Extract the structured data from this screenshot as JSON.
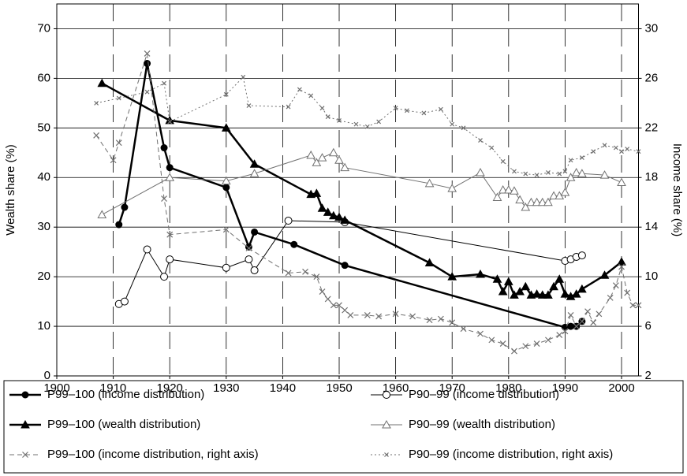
{
  "chart_data": {
    "type": "line",
    "y_label": "Wealth share (%)",
    "y2_label": "Income share (%)",
    "xlim": [
      1900,
      2003
    ],
    "xticks": [
      1900,
      1910,
      1920,
      1930,
      1940,
      1950,
      1960,
      1970,
      1980,
      1990,
      2000
    ],
    "ylim": [
      0,
      75
    ],
    "yticks": [
      0,
      10,
      20,
      30,
      40,
      50,
      60,
      70
    ],
    "y2lim": [
      2,
      32
    ],
    "y2ticks": [
      2,
      6,
      10,
      14,
      18,
      22,
      26,
      30
    ],
    "grid": true,
    "legend": "bottom",
    "series": [
      {
        "name": "P99–100 (income distribution)",
        "color": "#000000",
        "marker": "filled-circle",
        "line": "solid",
        "width": 2.5,
        "x": [
          1911,
          1912,
          1916,
          1919,
          1920,
          1930,
          1934,
          1935,
          1942,
          1951,
          1990,
          1991,
          1992,
          1993
        ],
        "values": [
          30.5,
          34,
          63,
          46,
          42,
          38,
          26,
          29,
          26.5,
          22.3,
          9.8,
          10,
          10,
          11
        ]
      },
      {
        "name": "P90–99 (income distribution)",
        "color": "#000000",
        "marker": "open-circle",
        "line": "solid",
        "width": 1,
        "x": [
          1911,
          1912,
          1916,
          1919,
          1920,
          1930,
          1934,
          1935,
          1941,
          1951,
          1990,
          1991,
          1992,
          1993
        ],
        "values": [
          14.5,
          15,
          25.5,
          20,
          23.5,
          21.8,
          23.5,
          21.3,
          31.3,
          31,
          23.2,
          23.5,
          24,
          24.3
        ]
      },
      {
        "name": "P99–100 (wealth distribution)",
        "color": "#000000",
        "marker": "filled-triangle",
        "line": "solid",
        "width": 2.5,
        "x": [
          1908,
          1920,
          1930,
          1935,
          1945,
          1946,
          1947,
          1948,
          1949,
          1950,
          1951,
          1966,
          1970,
          1975,
          1978,
          1979,
          1980,
          1981,
          1982,
          1983,
          1984,
          1985,
          1986,
          1987,
          1988,
          1989,
          1990,
          1991,
          1992,
          1993,
          1997,
          2000
        ],
        "values": [
          59,
          51.5,
          50,
          42.7,
          36.6,
          36.8,
          33.8,
          33,
          32.3,
          32,
          31.4,
          22.8,
          20,
          20.5,
          19.5,
          17,
          19,
          16.3,
          17,
          18,
          16.3,
          16.5,
          16.3,
          16.3,
          18,
          19.5,
          16.5,
          16,
          16.5,
          17.5,
          20.3,
          23
        ]
      },
      {
        "name": "P90–99 (wealth distribution)",
        "color": "#707070",
        "marker": "open-triangle",
        "line": "solid",
        "width": 1,
        "x": [
          1908,
          1920,
          1930,
          1935,
          1945,
          1946,
          1947,
          1949,
          1950,
          1951,
          1966,
          1970,
          1975,
          1978,
          1979,
          1980,
          1981,
          1982,
          1983,
          1984,
          1985,
          1986,
          1987,
          1988,
          1989,
          1990,
          1991,
          1992,
          1993,
          1997,
          2000
        ],
        "values": [
          32.5,
          40,
          39.3,
          40.8,
          44.5,
          43,
          44,
          45,
          43.5,
          42,
          38.8,
          37.8,
          41,
          36,
          37.5,
          37.5,
          37.3,
          35.5,
          34,
          35,
          35,
          35,
          35,
          36.3,
          36.3,
          37,
          40,
          41,
          40.8,
          40.5,
          39
        ]
      },
      {
        "name": "P99–100 (income distribution, right axis)",
        "color": "#707070",
        "marker": "x",
        "line": "dashed",
        "width": 1,
        "axis": "y2",
        "x": [
          1907,
          1910,
          1911,
          1916,
          1919,
          1920,
          1930,
          1934,
          1941,
          1944,
          1946,
          1947,
          1948,
          1949,
          1950,
          1951,
          1952,
          1955,
          1957,
          1960,
          1963,
          1966,
          1968,
          1970,
          1972,
          1975,
          1977,
          1979,
          1981,
          1983,
          1985,
          1987,
          1989,
          1990,
          1991,
          1992,
          1993,
          1994,
          1995,
          1996,
          1998,
          1999,
          2000,
          2001,
          2002,
          2003
        ],
        "values": [
          21.4,
          19.4,
          20.8,
          28.0,
          16.3,
          13.4,
          13.8,
          12.3,
          10.3,
          10.4,
          10.0,
          8.8,
          8.2,
          7.7,
          7.7,
          7.3,
          6.9,
          6.9,
          6.8,
          7.0,
          6.8,
          6.5,
          6.6,
          6.3,
          5.8,
          5.4,
          4.9,
          4.6,
          4.0,
          4.4,
          4.6,
          4.9,
          5.3,
          5.6,
          6.9,
          6.0,
          6.4,
          7.2,
          6.3,
          7.0,
          8.3,
          9.3,
          10.8,
          8.7,
          7.7,
          7.7
        ]
      },
      {
        "name": "P90–99 (income distribution, right axis)",
        "color": "#707070",
        "marker": "x-small",
        "line": "dotted",
        "width": 1,
        "axis": "y2",
        "x": [
          1907,
          1911,
          1916,
          1919,
          1920,
          1930,
          1933,
          1934,
          1941,
          1943,
          1945,
          1947,
          1948,
          1950,
          1953,
          1955,
          1957,
          1960,
          1962,
          1965,
          1968,
          1970,
          1972,
          1975,
          1977,
          1979,
          1981,
          1983,
          1985,
          1987,
          1989,
          1990,
          1991,
          1993,
          1995,
          1997,
          1999,
          2000,
          2001,
          2003
        ],
        "values": [
          24.0,
          24.4,
          24.9,
          25.6,
          22.5,
          24.7,
          26.1,
          23.8,
          23.7,
          25.1,
          24.6,
          23.6,
          22.9,
          22.6,
          22.3,
          22.1,
          22.5,
          23.6,
          23.4,
          23.2,
          23.5,
          22.3,
          22.0,
          21.0,
          20.4,
          19.3,
          18.5,
          18.3,
          18.2,
          18.4,
          18.3,
          18.5,
          19.4,
          19.6,
          20.1,
          20.6,
          20.4,
          20.1,
          20.3,
          20.1
        ]
      }
    ]
  }
}
